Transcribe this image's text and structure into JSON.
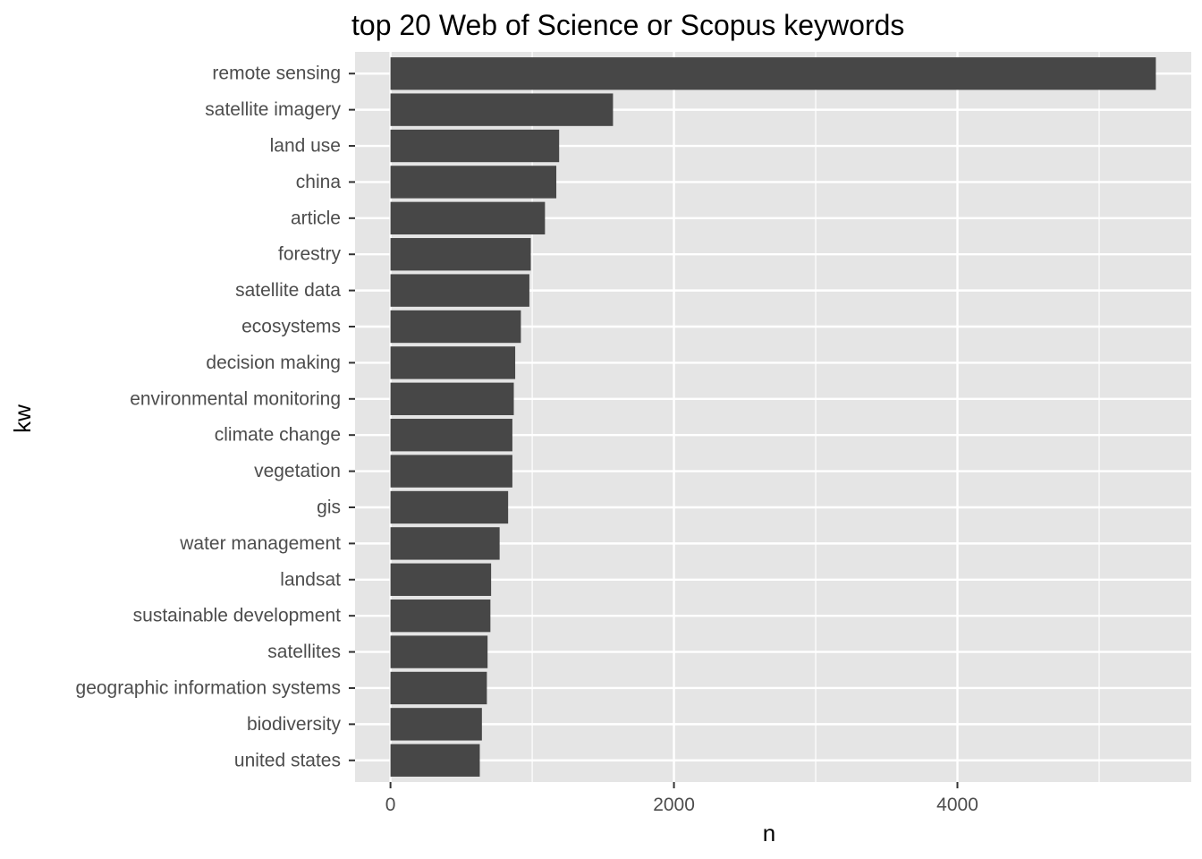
{
  "chart_data": {
    "type": "bar",
    "orientation": "horizontal",
    "title": "top 20 Web of Science or Scopus keywords",
    "xlabel": "n",
    "ylabel": "kw",
    "xlim": [
      -250,
      5650
    ],
    "x_ticks": [
      0,
      2000,
      4000
    ],
    "x_minor_ticks": [
      1000,
      3000,
      5000
    ],
    "grid": true,
    "categories": [
      "remote sensing",
      "satellite imagery",
      "land use",
      "china",
      "article",
      "forestry",
      "satellite data",
      "ecosystems",
      "decision making",
      "environmental monitoring",
      "climate change",
      "vegetation",
      "gis",
      "water management",
      "landsat",
      "sustainable development",
      "satellites",
      "geographic information systems",
      "biodiversity",
      "united states"
    ],
    "values": [
      5400,
      1570,
      1190,
      1170,
      1090,
      990,
      980,
      920,
      880,
      870,
      860,
      860,
      830,
      770,
      710,
      705,
      685,
      680,
      645,
      630
    ],
    "colors": {
      "bar": "#474747",
      "panel": "#e5e5e5",
      "grid": "#ffffff",
      "tick": "#333333",
      "tick_text": "#4d4d4d"
    }
  }
}
